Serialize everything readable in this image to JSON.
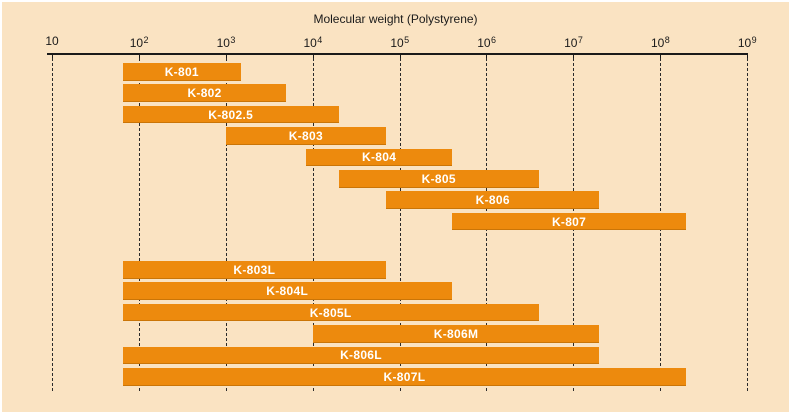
{
  "page": {
    "background": "#FFFFFF",
    "panel_background": "#FAE3C2"
  },
  "chart_data": {
    "type": "bar",
    "subtype": "horizontal-range-bars",
    "title": "Molecular weight (Polystyrene)",
    "x_axis": {
      "scale": "log10",
      "min": 10,
      "max": 1000000000,
      "ticks": [
        {
          "value": 10,
          "base": "10",
          "exp": ""
        },
        {
          "value": 100,
          "base": "10",
          "exp": "2"
        },
        {
          "value": 1000,
          "base": "10",
          "exp": "3"
        },
        {
          "value": 10000,
          "base": "10",
          "exp": "4"
        },
        {
          "value": 100000,
          "base": "10",
          "exp": "5"
        },
        {
          "value": 1000000,
          "base": "10",
          "exp": "6"
        },
        {
          "value": 10000000,
          "base": "10",
          "exp": "7"
        },
        {
          "value": 100000000,
          "base": "10",
          "exp": "8"
        },
        {
          "value": 1000000000,
          "base": "10",
          "exp": "9"
        }
      ]
    },
    "grid": {
      "style": "vertical-dashed",
      "positions": "every decade 10 to 10^9"
    },
    "legend": "none",
    "series": [
      {
        "name": "K-801",
        "group": "standard",
        "mw_min": 65,
        "mw_max": 1500
      },
      {
        "name": "K-802",
        "group": "standard",
        "mw_min": 65,
        "mw_max": 5000
      },
      {
        "name": "K-802.5",
        "group": "standard",
        "mw_min": 65,
        "mw_max": 20000
      },
      {
        "name": "K-803",
        "group": "standard",
        "mw_min": 1000,
        "mw_max": 70000
      },
      {
        "name": "K-804",
        "group": "standard",
        "mw_min": 8500,
        "mw_max": 400000
      },
      {
        "name": "K-805",
        "group": "standard",
        "mw_min": 20000,
        "mw_max": 4000000
      },
      {
        "name": "K-806",
        "group": "standard",
        "mw_min": 70000,
        "mw_max": 20000000
      },
      {
        "name": "K-807",
        "group": "standard",
        "mw_min": 400000,
        "mw_max": 200000000
      },
      {
        "name": "K-803L",
        "group": "linear",
        "mw_min": 65,
        "mw_max": 70000
      },
      {
        "name": "K-804L",
        "group": "linear",
        "mw_min": 65,
        "mw_max": 400000
      },
      {
        "name": "K-805L",
        "group": "linear",
        "mw_min": 65,
        "mw_max": 4000000
      },
      {
        "name": "K-806M",
        "group": "linear",
        "mw_min": 10000,
        "mw_max": 20000000
      },
      {
        "name": "K-806L",
        "group": "linear",
        "mw_min": 65,
        "mw_max": 20000000
      },
      {
        "name": "K-807L",
        "group": "linear",
        "mw_min": 65,
        "mw_max": 200000000
      }
    ],
    "colors": {
      "bar": "#ED8A0D",
      "bar_label": "#FFFFFF",
      "background": "#FAE3C2",
      "axis": "#1A1A1A"
    }
  }
}
